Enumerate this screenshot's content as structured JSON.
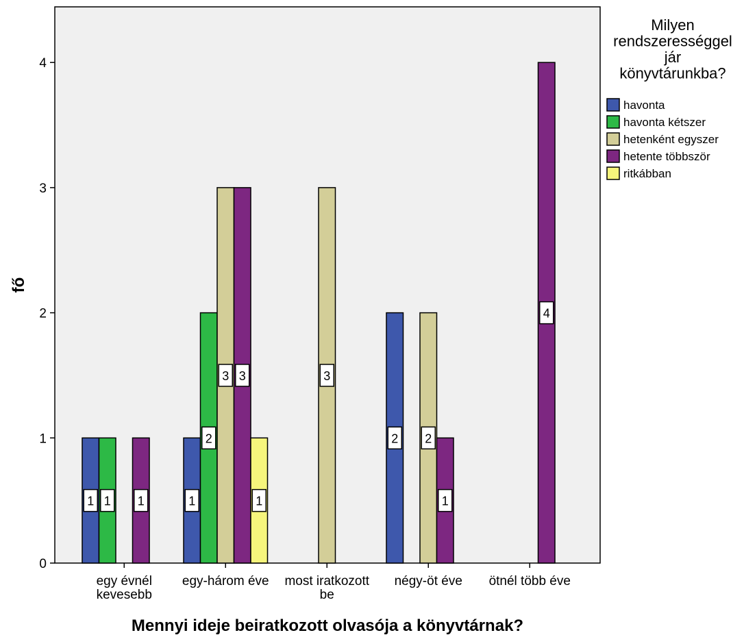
{
  "chart_data": {
    "type": "bar",
    "title": "",
    "xlabel": "Mennyi ideje beiratkozott olvasója a könyvtárnak?",
    "ylabel": "fő",
    "ylim": [
      0,
      4.45
    ],
    "yticks": [
      "0",
      "1",
      "2",
      "3",
      "4"
    ],
    "ytick_values": [
      0,
      1,
      2,
      3,
      4
    ],
    "grid": false,
    "categories": [
      [
        "egy évnél",
        "kevesebb"
      ],
      [
        "egy-három éve"
      ],
      [
        "most iratkozott",
        "be"
      ],
      [
        "négy-öt éve"
      ],
      [
        "ötnél több éve"
      ]
    ],
    "legend": {
      "placement": "right",
      "title": [
        "Milyen",
        "rendszerességgel",
        "jár",
        "könyvtárunkba?"
      ]
    },
    "series": [
      {
        "name": "havonta",
        "color": "#3e58ac",
        "values": [
          1,
          1,
          0,
          2,
          0
        ]
      },
      {
        "name": "havonta kétszer",
        "color": "#2db946",
        "values": [
          1,
          2,
          0,
          0,
          0
        ]
      },
      {
        "name": "hetenként egyszer",
        "color": "#d3ce98",
        "values": [
          0,
          3,
          3,
          2,
          0
        ]
      },
      {
        "name": "hetente többször",
        "color": "#7d2781",
        "values": [
          1,
          3,
          0,
          1,
          4
        ]
      },
      {
        "name": "ritkábban",
        "color": "#f6f57c",
        "values": [
          0,
          1,
          0,
          0,
          0
        ]
      }
    ],
    "plot_background": "#f0f0f0"
  }
}
